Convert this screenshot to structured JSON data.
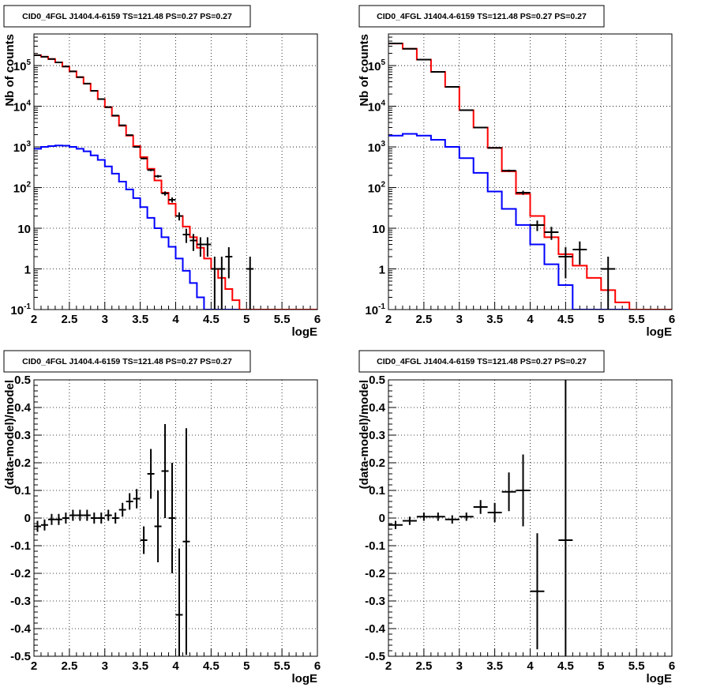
{
  "chart_data": [
    {
      "type": "line",
      "title": "CID0_4FGL J1404.4-6159 TS=121.48 PS=0.27 PS=0.27",
      "xlabel": "logE",
      "ylabel": "Nb of counts",
      "xlim": [
        2,
        6
      ],
      "ylim": [
        0.1,
        600000
      ],
      "yscale": "log",
      "grid": true,
      "x_ticks": [
        "2",
        "2.5",
        "3",
        "3.5",
        "4",
        "4.5",
        "5",
        "5.5",
        "6"
      ],
      "y_ticks": [
        {
          "v": 0.1,
          "label": "10",
          "sup": "-1"
        },
        {
          "v": 1,
          "label": "1",
          "sup": ""
        },
        {
          "v": 10,
          "label": "10",
          "sup": ""
        },
        {
          "v": 100,
          "label": "10",
          "sup": "2"
        },
        {
          "v": 1000,
          "label": "10",
          "sup": "3"
        },
        {
          "v": 10000,
          "label": "10",
          "sup": "4"
        },
        {
          "v": 100000,
          "label": "10",
          "sup": "5"
        }
      ],
      "bin_width": 0.1,
      "bins_start": 2.0,
      "series": [
        {
          "color": "#0000ff",
          "values": [
            900,
            1000,
            1050,
            1080,
            1070,
            1000,
            900,
            780,
            620,
            480,
            330,
            220,
            140,
            90,
            55,
            33,
            18,
            10,
            6,
            3.5,
            1.8,
            0.9,
            0.45,
            0.2,
            0.1,
            0.05,
            0.05,
            0.05,
            0.05,
            0.05,
            0.05,
            0.05,
            0.05,
            0.05,
            0.05,
            0.05,
            0.05,
            0.05,
            0.05,
            0.05
          ]
        },
        {
          "color": "#ff0000",
          "values": [
            180000,
            165000,
            145000,
            120000,
            95000,
            72000,
            52000,
            36000,
            24000,
            15000,
            9500,
            5800,
            3300,
            1900,
            1050,
            560,
            290,
            150,
            75,
            40,
            20,
            11,
            6,
            3.3,
            1.8,
            1.0,
            0.6,
            0.32,
            0.17,
            0.1,
            0.1,
            0.1,
            0.1,
            0.1,
            0.1,
            0.1,
            0.1,
            0.1,
            0.1,
            0.1
          ]
        }
      ],
      "points": [
        {
          "x": 2.05,
          "y": 180000
        },
        {
          "x": 2.15,
          "y": 165000
        },
        {
          "x": 2.25,
          "y": 145000
        },
        {
          "x": 2.35,
          "y": 120000
        },
        {
          "x": 2.45,
          "y": 95000
        },
        {
          "x": 2.55,
          "y": 72000
        },
        {
          "x": 2.65,
          "y": 52000
        },
        {
          "x": 2.75,
          "y": 36000
        },
        {
          "x": 2.85,
          "y": 24000
        },
        {
          "x": 2.95,
          "y": 15000
        },
        {
          "x": 3.05,
          "y": 9500
        },
        {
          "x": 3.15,
          "y": 5900
        },
        {
          "x": 3.25,
          "y": 3400
        },
        {
          "x": 3.35,
          "y": 1950
        },
        {
          "x": 3.45,
          "y": 1000
        },
        {
          "x": 3.55,
          "y": 520
        },
        {
          "x": 3.65,
          "y": 270
        },
        {
          "x": 3.75,
          "y": 190
        },
        {
          "x": 3.85,
          "y": 72
        },
        {
          "x": 3.95,
          "y": 50
        },
        {
          "x": 4.05,
          "y": 20
        },
        {
          "x": 4.15,
          "y": 7
        },
        {
          "x": 4.25,
          "y": 5
        },
        {
          "x": 4.35,
          "y": 4
        },
        {
          "x": 4.45,
          "y": 4
        },
        {
          "x": 4.55,
          "y": 1
        },
        {
          "x": 4.65,
          "y": 1
        },
        {
          "x": 4.75,
          "y": 2
        },
        {
          "x": 5.05,
          "y": 1
        }
      ]
    },
    {
      "type": "line",
      "title": "CID0_4FGL J1404.4-6159 TS=121.48 PS=0.27 PS=0.27",
      "xlabel": "logE",
      "ylabel": "Nb of counts",
      "xlim": [
        2,
        6
      ],
      "ylim": [
        0.1,
        600000
      ],
      "yscale": "log",
      "grid": true,
      "x_ticks": [
        "2",
        "2.5",
        "3",
        "3.5",
        "4",
        "4.5",
        "5",
        "5.5",
        "6"
      ],
      "y_ticks": [
        {
          "v": 0.1,
          "label": "10",
          "sup": "-1"
        },
        {
          "v": 1,
          "label": "1",
          "sup": ""
        },
        {
          "v": 10,
          "label": "10",
          "sup": ""
        },
        {
          "v": 100,
          "label": "10",
          "sup": "2"
        },
        {
          "v": 1000,
          "label": "10",
          "sup": "3"
        },
        {
          "v": 10000,
          "label": "10",
          "sup": "4"
        },
        {
          "v": 100000,
          "label": "10",
          "sup": "5"
        }
      ],
      "bin_width": 0.2,
      "bins_start": 2.0,
      "series": [
        {
          "color": "#0000ff",
          "values": [
            1900,
            2100,
            1900,
            1500,
            1000,
            530,
            230,
            80,
            30,
            12,
            4,
            1.3,
            0.4,
            0.1,
            0.05,
            0.05,
            0.05,
            0.05,
            0.05,
            0.05
          ]
        },
        {
          "color": "#ff0000",
          "values": [
            350000,
            260000,
            140000,
            70000,
            30000,
            8000,
            3000,
            950,
            250,
            70,
            20,
            6,
            2.3,
            1.2,
            0.6,
            0.3,
            0.15,
            0.1,
            0.1,
            0.1
          ]
        }
      ],
      "points": [
        {
          "x": 2.1,
          "y": 350000
        },
        {
          "x": 2.3,
          "y": 260000
        },
        {
          "x": 2.5,
          "y": 140000
        },
        {
          "x": 2.7,
          "y": 70000
        },
        {
          "x": 2.9,
          "y": 30000
        },
        {
          "x": 3.1,
          "y": 8000
        },
        {
          "x": 3.3,
          "y": 3000
        },
        {
          "x": 3.5,
          "y": 950
        },
        {
          "x": 3.7,
          "y": 260
        },
        {
          "x": 3.9,
          "y": 75
        },
        {
          "x": 4.1,
          "y": 12
        },
        {
          "x": 4.3,
          "y": 8
        },
        {
          "x": 4.5,
          "y": 2
        },
        {
          "x": 4.7,
          "y": 3
        },
        {
          "x": 5.1,
          "y": 1
        }
      ]
    },
    {
      "type": "scatter",
      "title": "CID0_4FGL J1404.4-6159 TS=121.48 PS=0.27 PS=0.27",
      "xlabel": "logE",
      "ylabel": "(data-model)/model",
      "xlim": [
        2,
        6
      ],
      "ylim": [
        -0.5,
        0.5
      ],
      "grid": true,
      "x_ticks": [
        "2",
        "2.5",
        "3",
        "3.5",
        "4",
        "4.5",
        "5",
        "5.5",
        "6"
      ],
      "y_ticks": [
        "-0.5",
        "-0.4",
        "-0.3",
        "-0.2",
        "-0.1",
        "0",
        "0.1",
        "0.2",
        "0.3",
        "0.4",
        "0.5"
      ],
      "xerr": 0.05,
      "points": [
        {
          "x": 2.05,
          "y": -0.03,
          "err": 0.02
        },
        {
          "x": 2.15,
          "y": -0.025,
          "err": 0.02
        },
        {
          "x": 2.25,
          "y": -0.005,
          "err": 0.02
        },
        {
          "x": 2.35,
          "y": -0.005,
          "err": 0.02
        },
        {
          "x": 2.45,
          "y": 0.0,
          "err": 0.02
        },
        {
          "x": 2.55,
          "y": 0.01,
          "err": 0.02
        },
        {
          "x": 2.65,
          "y": 0.01,
          "err": 0.02
        },
        {
          "x": 2.75,
          "y": 0.01,
          "err": 0.02
        },
        {
          "x": 2.85,
          "y": 0.0,
          "err": 0.02
        },
        {
          "x": 2.95,
          "y": 0.0,
          "err": 0.02
        },
        {
          "x": 3.05,
          "y": 0.01,
          "err": 0.02
        },
        {
          "x": 3.15,
          "y": 0.0,
          "err": 0.02
        },
        {
          "x": 3.25,
          "y": 0.03,
          "err": 0.025
        },
        {
          "x": 3.35,
          "y": 0.06,
          "err": 0.03
        },
        {
          "x": 3.45,
          "y": 0.07,
          "err": 0.035
        },
        {
          "x": 3.55,
          "y": -0.08,
          "err": 0.05
        },
        {
          "x": 3.65,
          "y": 0.16,
          "err": 0.09
        },
        {
          "x": 3.75,
          "y": -0.03,
          "err": 0.13
        },
        {
          "x": 3.85,
          "y": 0.17,
          "err": 0.17
        },
        {
          "x": 3.95,
          "y": 0.0,
          "err": 0.2
        },
        {
          "x": 4.05,
          "y": -0.35,
          "err": 0.24
        },
        {
          "x": 4.15,
          "y": -0.085,
          "err": 0.41
        }
      ]
    },
    {
      "type": "scatter",
      "title": "CID0_4FGL J1404.4-6159 TS=121.48 PS=0.27 PS=0.27",
      "xlabel": "logE",
      "ylabel": "(data-model)/model",
      "xlim": [
        2,
        6
      ],
      "ylim": [
        -0.5,
        0.5
      ],
      "grid": true,
      "x_ticks": [
        "2",
        "2.5",
        "3",
        "3.5",
        "4",
        "4.5",
        "5",
        "5.5",
        "6"
      ],
      "y_ticks": [
        "-0.5",
        "-0.4",
        "-0.3",
        "-0.2",
        "-0.1",
        "0",
        "0.1",
        "0.2",
        "0.3",
        "0.4",
        "0.5"
      ],
      "xerr": 0.1,
      "points": [
        {
          "x": 2.1,
          "y": -0.025,
          "err": 0.015
        },
        {
          "x": 2.3,
          "y": -0.01,
          "err": 0.015
        },
        {
          "x": 2.5,
          "y": 0.005,
          "err": 0.015
        },
        {
          "x": 2.7,
          "y": 0.005,
          "err": 0.015
        },
        {
          "x": 2.9,
          "y": -0.005,
          "err": 0.015
        },
        {
          "x": 3.1,
          "y": 0.005,
          "err": 0.015
        },
        {
          "x": 3.3,
          "y": 0.04,
          "err": 0.025
        },
        {
          "x": 3.5,
          "y": 0.02,
          "err": 0.035
        },
        {
          "x": 3.7,
          "y": 0.095,
          "err": 0.07
        },
        {
          "x": 3.9,
          "y": 0.1,
          "err": 0.13
        },
        {
          "x": 4.1,
          "y": -0.265,
          "err": 0.21
        },
        {
          "x": 4.5,
          "y": -0.08,
          "err": 0.58
        }
      ]
    }
  ]
}
